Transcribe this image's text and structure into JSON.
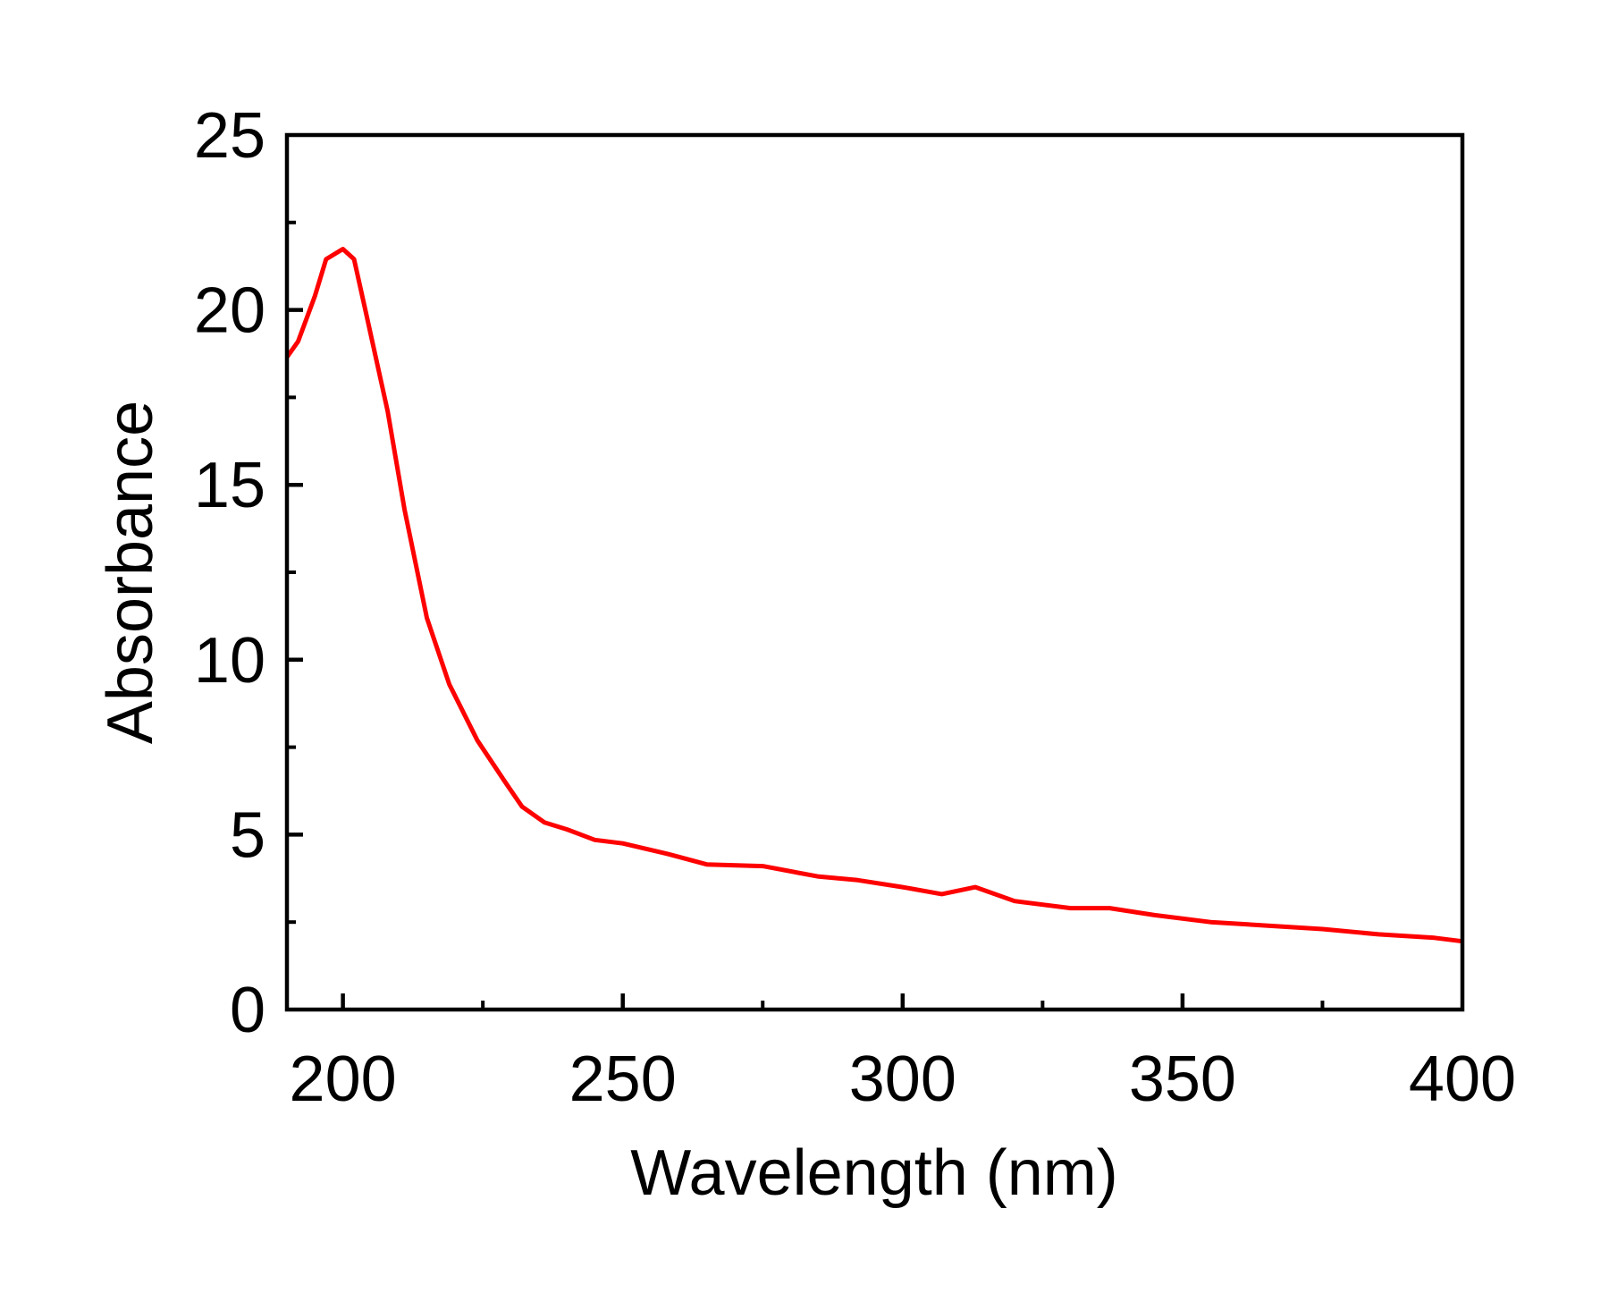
{
  "chart_data": {
    "type": "line",
    "title": "",
    "xlabel": "Wavelength (nm)",
    "ylabel": "Absorbance",
    "xlim": [
      190,
      400
    ],
    "ylim": [
      0,
      25
    ],
    "x_ticks": [
      200,
      250,
      300,
      350,
      400
    ],
    "x_minor_ticks": [
      225,
      275,
      325,
      375
    ],
    "y_ticks": [
      0,
      5,
      10,
      15,
      20,
      25
    ],
    "y_minor_ticks": [
      2.5,
      7.5,
      12.5,
      17.5,
      22.5
    ],
    "grid": false,
    "legend": "none",
    "series": [
      {
        "color": "#ff0000",
        "x": [
          190,
          192,
          195,
          197,
          200,
          202,
          204,
          208,
          211,
          215,
          219,
          224,
          229,
          232,
          236,
          240,
          245,
          250,
          258,
          265,
          275,
          285,
          292,
          300,
          307,
          313,
          320,
          330,
          337,
          345,
          355,
          365,
          375,
          385,
          395,
          400
        ],
        "y": [
          18.65,
          19.1,
          20.4,
          21.45,
          21.74,
          21.45,
          20.0,
          17.1,
          14.3,
          11.2,
          9.3,
          7.7,
          6.5,
          5.8,
          5.35,
          5.15,
          4.85,
          4.75,
          4.45,
          4.15,
          4.1,
          3.8,
          3.7,
          3.5,
          3.3,
          3.5,
          3.1,
          2.9,
          2.9,
          2.7,
          2.5,
          2.4,
          2.3,
          2.15,
          2.05,
          1.95
        ]
      }
    ]
  }
}
